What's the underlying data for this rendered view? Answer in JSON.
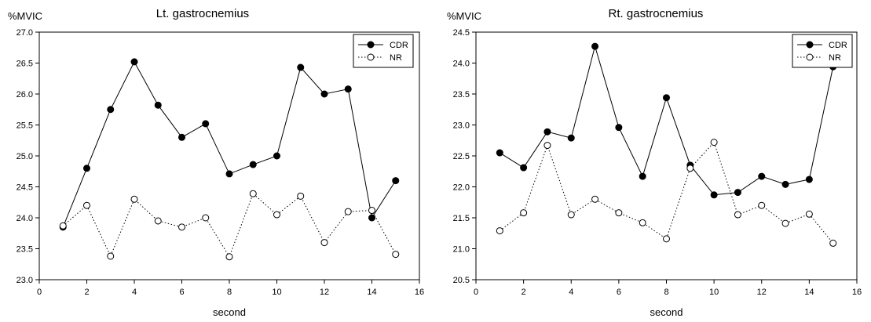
{
  "chart_data": [
    {
      "type": "line",
      "title": "Lt. gastrocnemius",
      "ylabel": "%MVIC",
      "xlabel": "second",
      "xlim": [
        0,
        16
      ],
      "ylim": [
        23.0,
        27.0
      ],
      "xticks": [
        "0",
        "2",
        "4",
        "6",
        "8",
        "10",
        "12",
        "14",
        "16"
      ],
      "yticks": [
        "23.0",
        "23.5",
        "24.0",
        "24.5",
        "25.0",
        "25.5",
        "26.0",
        "26.5",
        "27.0"
      ],
      "legend": "top-right",
      "grid": false,
      "x": [
        1,
        2,
        3,
        4,
        5,
        6,
        7,
        8,
        9,
        10,
        11,
        12,
        13,
        14,
        15
      ],
      "series": [
        {
          "name": "CDR",
          "style": "solid",
          "marker": "filled-circle",
          "values": [
            23.85,
            24.8,
            25.75,
            26.52,
            25.82,
            25.3,
            25.52,
            24.71,
            24.86,
            25.0,
            26.43,
            26.0,
            26.08,
            24.0,
            24.6
          ]
        },
        {
          "name": "NR",
          "style": "dotted",
          "marker": "open-circle",
          "values": [
            23.87,
            24.2,
            23.38,
            24.3,
            23.95,
            23.85,
            24.0,
            23.37,
            24.39,
            24.05,
            24.35,
            23.6,
            24.1,
            24.12,
            23.41
          ]
        }
      ]
    },
    {
      "type": "line",
      "title": "Rt. gastrocnemius",
      "ylabel": "%MVIC",
      "xlabel": "second",
      "xlim": [
        0,
        16
      ],
      "ylim": [
        20.5,
        24.5
      ],
      "xticks": [
        "0",
        "2",
        "4",
        "6",
        "8",
        "10",
        "12",
        "14",
        "16"
      ],
      "yticks": [
        "20.5",
        "21.0",
        "21.5",
        "22.0",
        "22.5",
        "23.0",
        "23.5",
        "24.0",
        "24.5"
      ],
      "legend": "top-right",
      "grid": false,
      "x": [
        1,
        2,
        3,
        4,
        5,
        6,
        7,
        8,
        9,
        10,
        11,
        12,
        13,
        14,
        15
      ],
      "series": [
        {
          "name": "CDR",
          "style": "solid",
          "marker": "filled-circle",
          "values": [
            22.55,
            22.31,
            22.89,
            22.79,
            24.27,
            22.96,
            22.17,
            23.44,
            22.35,
            21.87,
            21.91,
            22.17,
            22.04,
            22.12,
            23.94
          ]
        },
        {
          "name": "NR",
          "style": "dotted",
          "marker": "open-circle",
          "values": [
            21.29,
            21.58,
            22.67,
            21.55,
            21.8,
            21.58,
            21.42,
            21.16,
            22.3,
            22.72,
            21.55,
            21.7,
            21.41,
            21.56,
            21.09
          ]
        }
      ]
    }
  ]
}
